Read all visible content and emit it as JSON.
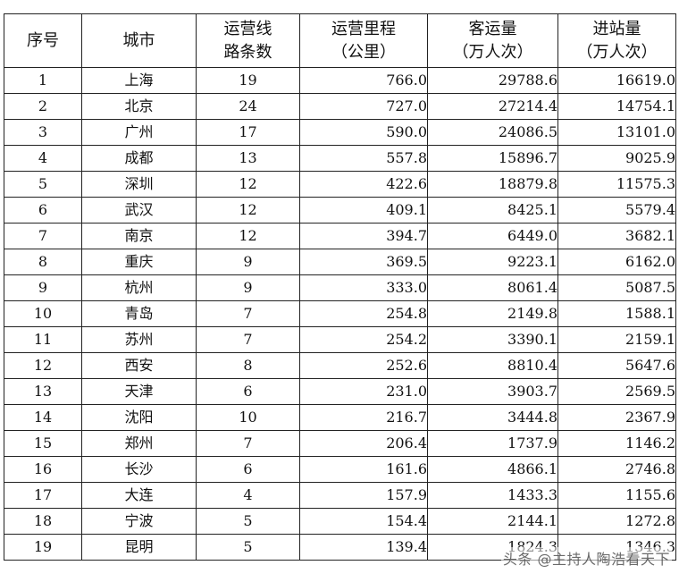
{
  "headers": {
    "idx": [
      "序号"
    ],
    "city": [
      "城市"
    ],
    "lines": [
      "运营线",
      "路条数"
    ],
    "mileage": [
      "运营里程",
      "（公里）"
    ],
    "passengers": [
      "客运量",
      "（万人次）"
    ],
    "entries": [
      "进站量",
      "（万人次）"
    ]
  },
  "rows": [
    {
      "idx": "1",
      "city": "上海",
      "lines": "19",
      "mileage": "766.0",
      "passengers": "29788.6",
      "entries": "16619.0"
    },
    {
      "idx": "2",
      "city": "北京",
      "lines": "24",
      "mileage": "727.0",
      "passengers": "27214.4",
      "entries": "14754.1"
    },
    {
      "idx": "3",
      "city": "广州",
      "lines": "17",
      "mileage": "590.0",
      "passengers": "24086.5",
      "entries": "13101.0"
    },
    {
      "idx": "4",
      "city": "成都",
      "lines": "13",
      "mileage": "557.8",
      "passengers": "15896.7",
      "entries": "9025.9"
    },
    {
      "idx": "5",
      "city": "深圳",
      "lines": "12",
      "mileage": "422.6",
      "passengers": "18879.8",
      "entries": "11575.3"
    },
    {
      "idx": "6",
      "city": "武汉",
      "lines": "12",
      "mileage": "409.1",
      "passengers": "8425.1",
      "entries": "5579.4"
    },
    {
      "idx": "7",
      "city": "南京",
      "lines": "12",
      "mileage": "394.7",
      "passengers": "6449.0",
      "entries": "3682.1"
    },
    {
      "idx": "8",
      "city": "重庆",
      "lines": "9",
      "mileage": "369.5",
      "passengers": "9223.1",
      "entries": "6162.0"
    },
    {
      "idx": "9",
      "city": "杭州",
      "lines": "9",
      "mileage": "333.0",
      "passengers": "8061.4",
      "entries": "5087.5"
    },
    {
      "idx": "10",
      "city": "青岛",
      "lines": "7",
      "mileage": "254.8",
      "passengers": "2149.8",
      "entries": "1588.1"
    },
    {
      "idx": "11",
      "city": "苏州",
      "lines": "7",
      "mileage": "254.2",
      "passengers": "3390.1",
      "entries": "2159.1"
    },
    {
      "idx": "12",
      "city": "西安",
      "lines": "8",
      "mileage": "252.6",
      "passengers": "8810.4",
      "entries": "5647.6"
    },
    {
      "idx": "13",
      "city": "天津",
      "lines": "6",
      "mileage": "231.0",
      "passengers": "3903.7",
      "entries": "2569.5"
    },
    {
      "idx": "14",
      "city": "沈阳",
      "lines": "10",
      "mileage": "216.7",
      "passengers": "3444.8",
      "entries": "2367.9"
    },
    {
      "idx": "15",
      "city": "郑州",
      "lines": "7",
      "mileage": "206.4",
      "passengers": "1737.9",
      "entries": "1146.2"
    },
    {
      "idx": "16",
      "city": "长沙",
      "lines": "6",
      "mileage": "161.6",
      "passengers": "4866.1",
      "entries": "2746.8"
    },
    {
      "idx": "17",
      "city": "大连",
      "lines": "4",
      "mileage": "157.9",
      "passengers": "1433.3",
      "entries": "1155.6"
    },
    {
      "idx": "18",
      "city": "宁波",
      "lines": "5",
      "mileage": "154.4",
      "passengers": "2144.1",
      "entries": "1272.8"
    },
    {
      "idx": "19",
      "city": "昆明",
      "lines": "5",
      "mileage": "139.4",
      "passengers": "1824.3",
      "entries": "1346.3"
    }
  ],
  "watermark": "头条 @主持人陶浩看天下"
}
